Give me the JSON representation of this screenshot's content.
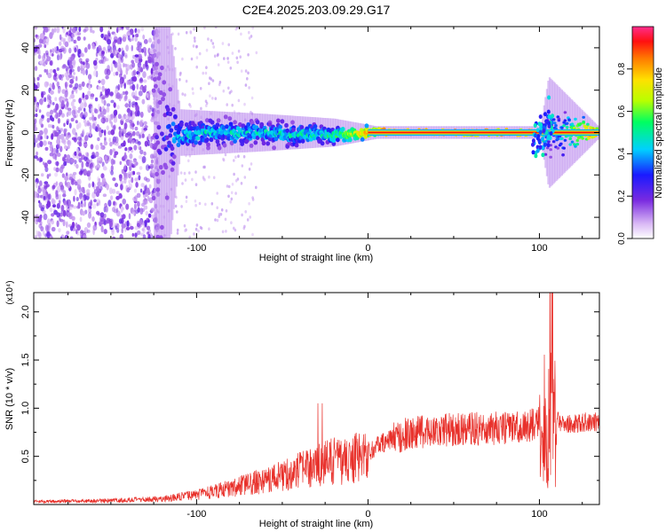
{
  "title": "C2E4.2025.203.09.29.G17",
  "chart_data": [
    {
      "type": "heatmap",
      "xlabel": "Height of straight line (km)",
      "ylabel": "Frequency (Hz)",
      "xlim": [
        -195,
        135
      ],
      "ylim": [
        -50,
        50
      ],
      "xticks": [
        -100,
        0,
        100
      ],
      "yticks": [
        -40,
        -20,
        0,
        20,
        40
      ],
      "colorbar": {
        "label": "Normalized spectral amplitude",
        "range": [
          0,
          1
        ],
        "ticks": [
          0.0,
          0.2,
          0.4,
          0.6,
          0.8
        ]
      },
      "description_points": [
        {
          "x": -190,
          "y_spread": 50,
          "amp": 0.1
        },
        {
          "x": -125,
          "y_spread": 50,
          "amp": 0.1
        },
        {
          "x": -110,
          "y_spread": 5,
          "amp": 0.45
        },
        {
          "x": -60,
          "y_spread": 4,
          "amp": 0.45
        },
        {
          "x": -20,
          "y_spread": 3,
          "amp": 0.5
        },
        {
          "x": 10,
          "y_spread": 1,
          "amp": 0.95
        },
        {
          "x": 100,
          "y_spread": 1,
          "amp": 0.95
        },
        {
          "x": 105,
          "y_spread": 12,
          "amp": 0.3
        },
        {
          "x": 135,
          "y_spread": 1,
          "amp": 0.95
        }
      ]
    },
    {
      "type": "line",
      "xlabel": "Height of straight line (km)",
      "ylabel": "SNR (10 * v/v)",
      "yscale_label": "(x10⁴)",
      "xlim": [
        -195,
        135
      ],
      "ylim": [
        0,
        2.2
      ],
      "xticks": [
        -100,
        0,
        100
      ],
      "yticks": [
        0.5,
        1.0,
        1.5,
        2.0
      ],
      "series": [
        {
          "color": "#e8302a",
          "x": [
            -195,
            -150,
            -120,
            -100,
            -80,
            -60,
            -40,
            -30,
            -20,
            -10,
            0,
            10,
            20,
            30,
            40,
            50,
            60,
            70,
            80,
            90,
            95,
            100,
            103,
            106,
            108,
            110,
            115,
            120,
            130,
            135
          ],
          "y": [
            0.03,
            0.04,
            0.06,
            0.1,
            0.17,
            0.25,
            0.35,
            0.4,
            0.45,
            0.45,
            0.55,
            0.65,
            0.72,
            0.75,
            0.77,
            0.78,
            0.79,
            0.79,
            0.79,
            0.8,
            0.82,
            0.85,
            0.6,
            1.4,
            0.2,
            0.9,
            0.82,
            0.84,
            0.86,
            0.85
          ]
        }
      ]
    }
  ]
}
